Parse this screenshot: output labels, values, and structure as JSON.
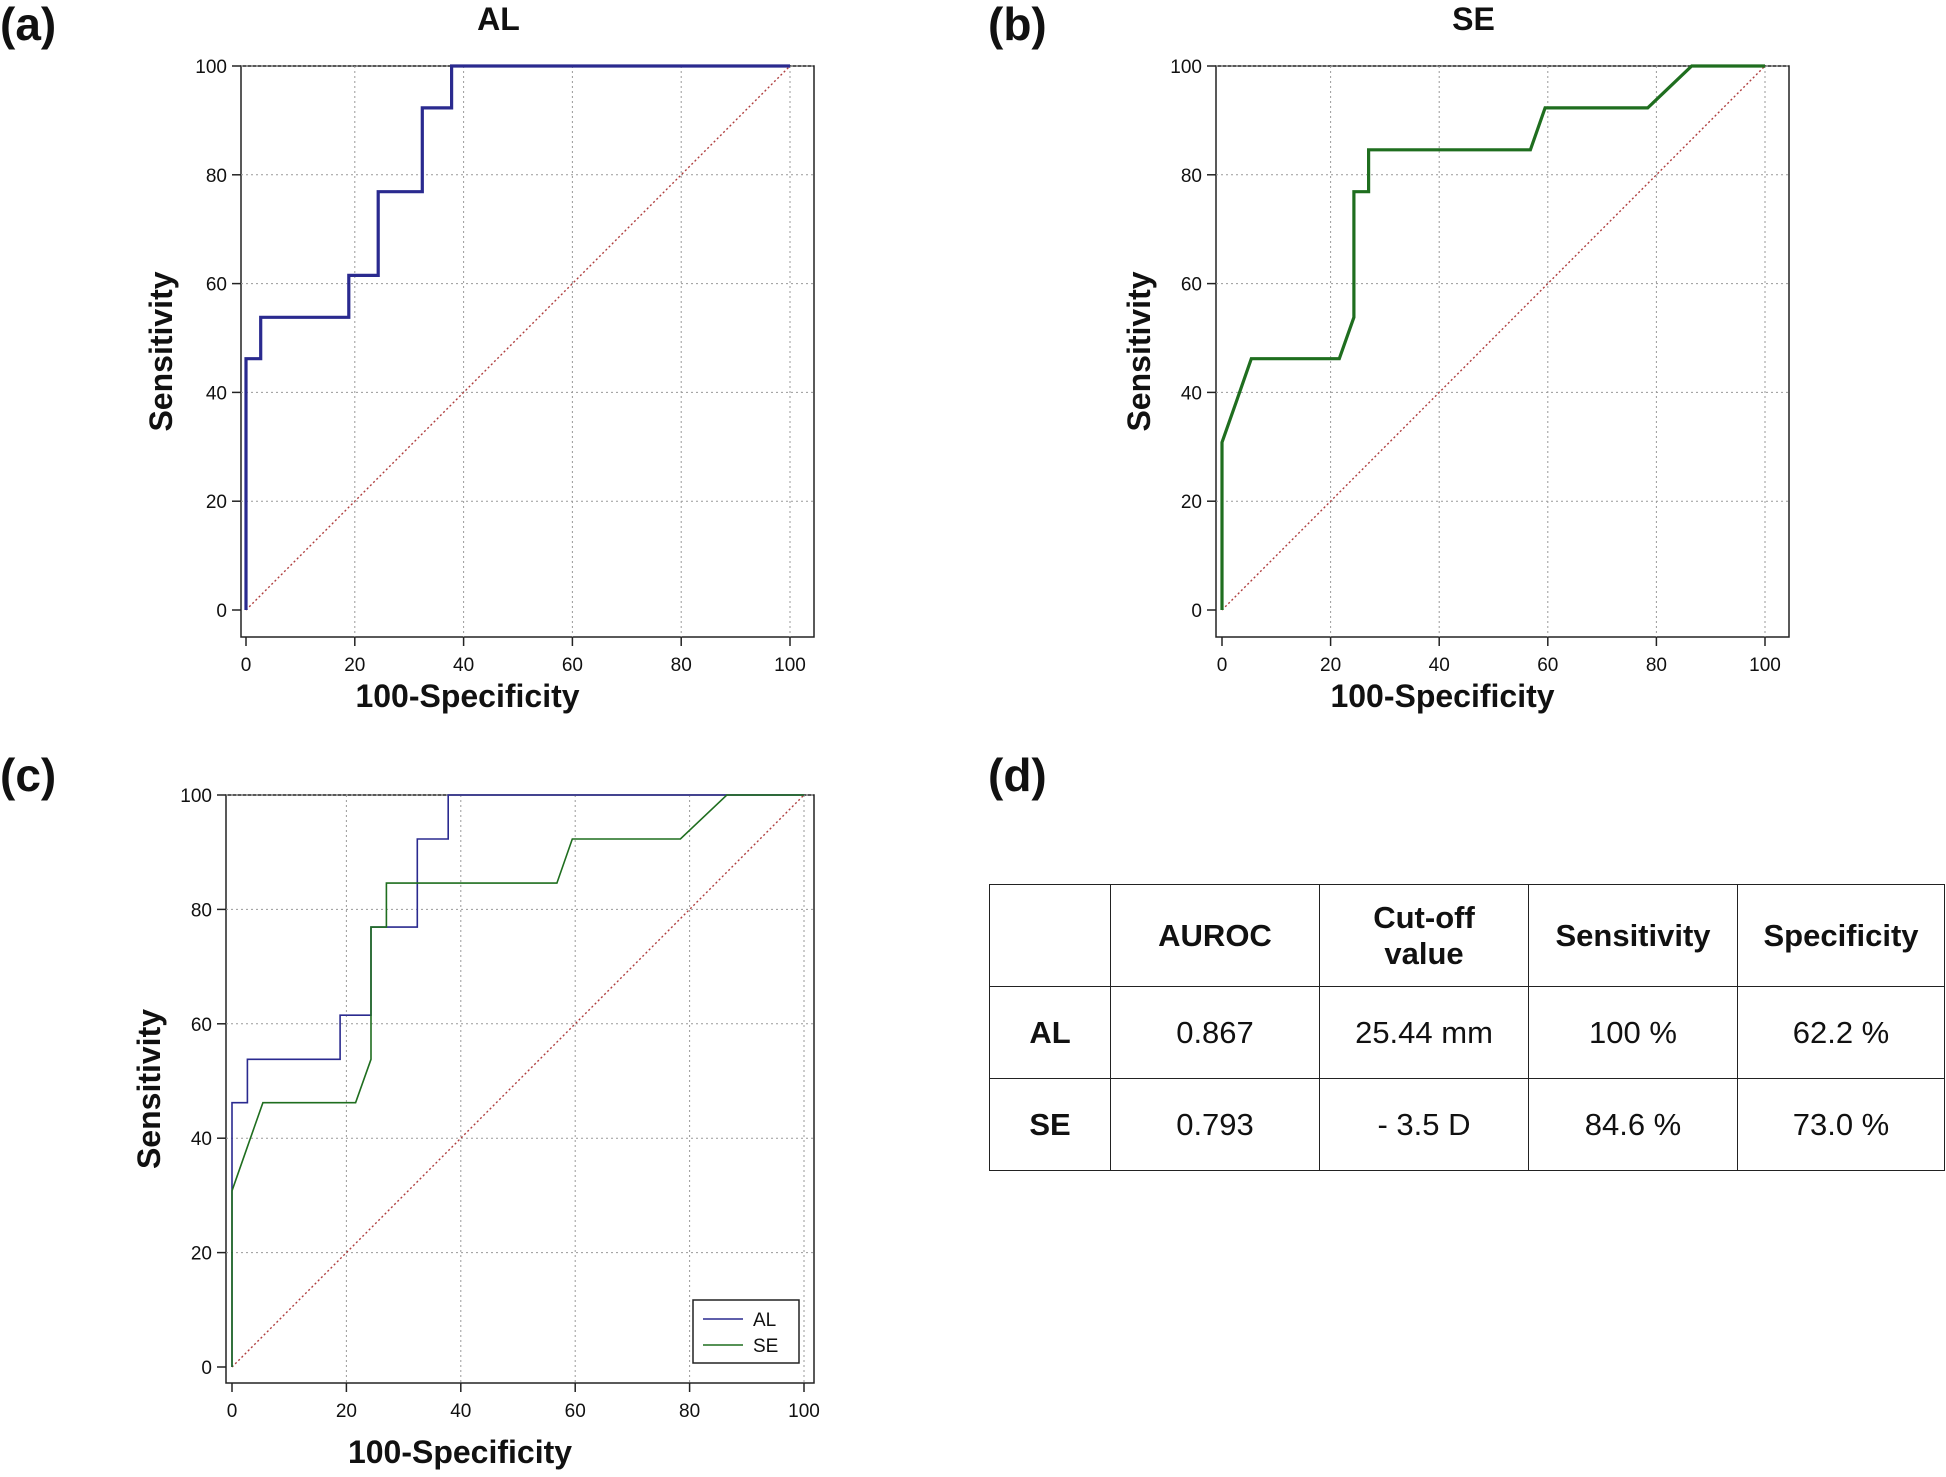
{
  "panels": {
    "a": {
      "label": "(a)"
    },
    "b": {
      "label": "(b)"
    },
    "c": {
      "label": "(c)"
    },
    "d": {
      "label": "(d)"
    }
  },
  "colors": {
    "al": "#2a2a8f",
    "se": "#1f6e1f",
    "diagonal": "#b04040",
    "grid": "#9a9a9a",
    "axis": "#222222"
  },
  "chart_data": [
    {
      "id": "a",
      "type": "line",
      "title": "AL",
      "xlabel": "100-Specificity",
      "ylabel": "Sensitivity",
      "xlim": [
        0,
        100
      ],
      "ylim": [
        0,
        100
      ],
      "xticks": [
        "0",
        "20",
        "40",
        "60",
        "80",
        "100"
      ],
      "yticks": [
        "0",
        "20",
        "40",
        "60",
        "80",
        "100"
      ],
      "grid": true,
      "reference_line": true,
      "series": [
        {
          "name": "AL",
          "x": [
            0,
            0,
            2.7,
            2.7,
            18.9,
            18.9,
            24.3,
            24.3,
            32.4,
            32.4,
            37.8,
            37.8,
            100
          ],
          "y": [
            0,
            46.2,
            46.2,
            53.8,
            53.8,
            61.5,
            61.5,
            76.9,
            76.9,
            92.3,
            92.3,
            100,
            100
          ]
        }
      ]
    },
    {
      "id": "b",
      "type": "line",
      "title": "SE",
      "xlabel": "100-Specificity",
      "ylabel": "Sensitivity",
      "xlim": [
        0,
        100
      ],
      "ylim": [
        0,
        100
      ],
      "xticks": [
        "0",
        "20",
        "40",
        "60",
        "80",
        "100"
      ],
      "yticks": [
        "0",
        "20",
        "40",
        "60",
        "80",
        "100"
      ],
      "grid": true,
      "reference_line": true,
      "series": [
        {
          "name": "SE",
          "x": [
            0,
            0,
            2.7,
            5.4,
            21.6,
            24.3,
            24.3,
            27.0,
            27.0,
            56.8,
            59.5,
            78.4,
            86.5,
            100
          ],
          "y": [
            0,
            30.8,
            38.5,
            46.2,
            46.2,
            53.8,
            76.9,
            76.9,
            84.6,
            84.6,
            92.3,
            92.3,
            100,
            100
          ]
        }
      ]
    },
    {
      "id": "c",
      "type": "line",
      "title": "",
      "xlabel": "100-Specificity",
      "ylabel": "Sensitivity",
      "xlim": [
        0,
        100
      ],
      "ylim": [
        0,
        100
      ],
      "xticks": [
        "0",
        "20",
        "40",
        "60",
        "80",
        "100"
      ],
      "yticks": [
        "0",
        "20",
        "40",
        "60",
        "80",
        "100"
      ],
      "grid": true,
      "reference_line": true,
      "legend": {
        "position": "bottom-right",
        "entries": [
          "AL",
          "SE"
        ]
      },
      "series": [
        {
          "name": "AL",
          "x": [
            0,
            0,
            2.7,
            2.7,
            18.9,
            18.9,
            24.3,
            24.3,
            32.4,
            32.4,
            37.8,
            37.8,
            100
          ],
          "y": [
            0,
            46.2,
            46.2,
            53.8,
            53.8,
            61.5,
            61.5,
            76.9,
            76.9,
            92.3,
            92.3,
            100,
            100
          ]
        },
        {
          "name": "SE",
          "x": [
            0,
            0,
            2.7,
            5.4,
            21.6,
            24.3,
            24.3,
            27.0,
            27.0,
            56.8,
            59.5,
            78.4,
            86.5,
            100
          ],
          "y": [
            0,
            30.8,
            38.5,
            46.2,
            46.2,
            53.8,
            76.9,
            76.9,
            84.6,
            84.6,
            92.3,
            92.3,
            100,
            100
          ]
        }
      ]
    },
    {
      "id": "d",
      "type": "table",
      "columns": [
        "",
        "AUROC",
        "Cut-off value",
        "Sensitivity",
        "Specificity"
      ],
      "rows": [
        [
          "AL",
          "0.867",
          "25.44 mm",
          "100 %",
          "62.2 %"
        ],
        [
          "SE",
          "0.793",
          "- 3.5 D",
          "84.6 %",
          "73.0 %"
        ]
      ]
    }
  ]
}
